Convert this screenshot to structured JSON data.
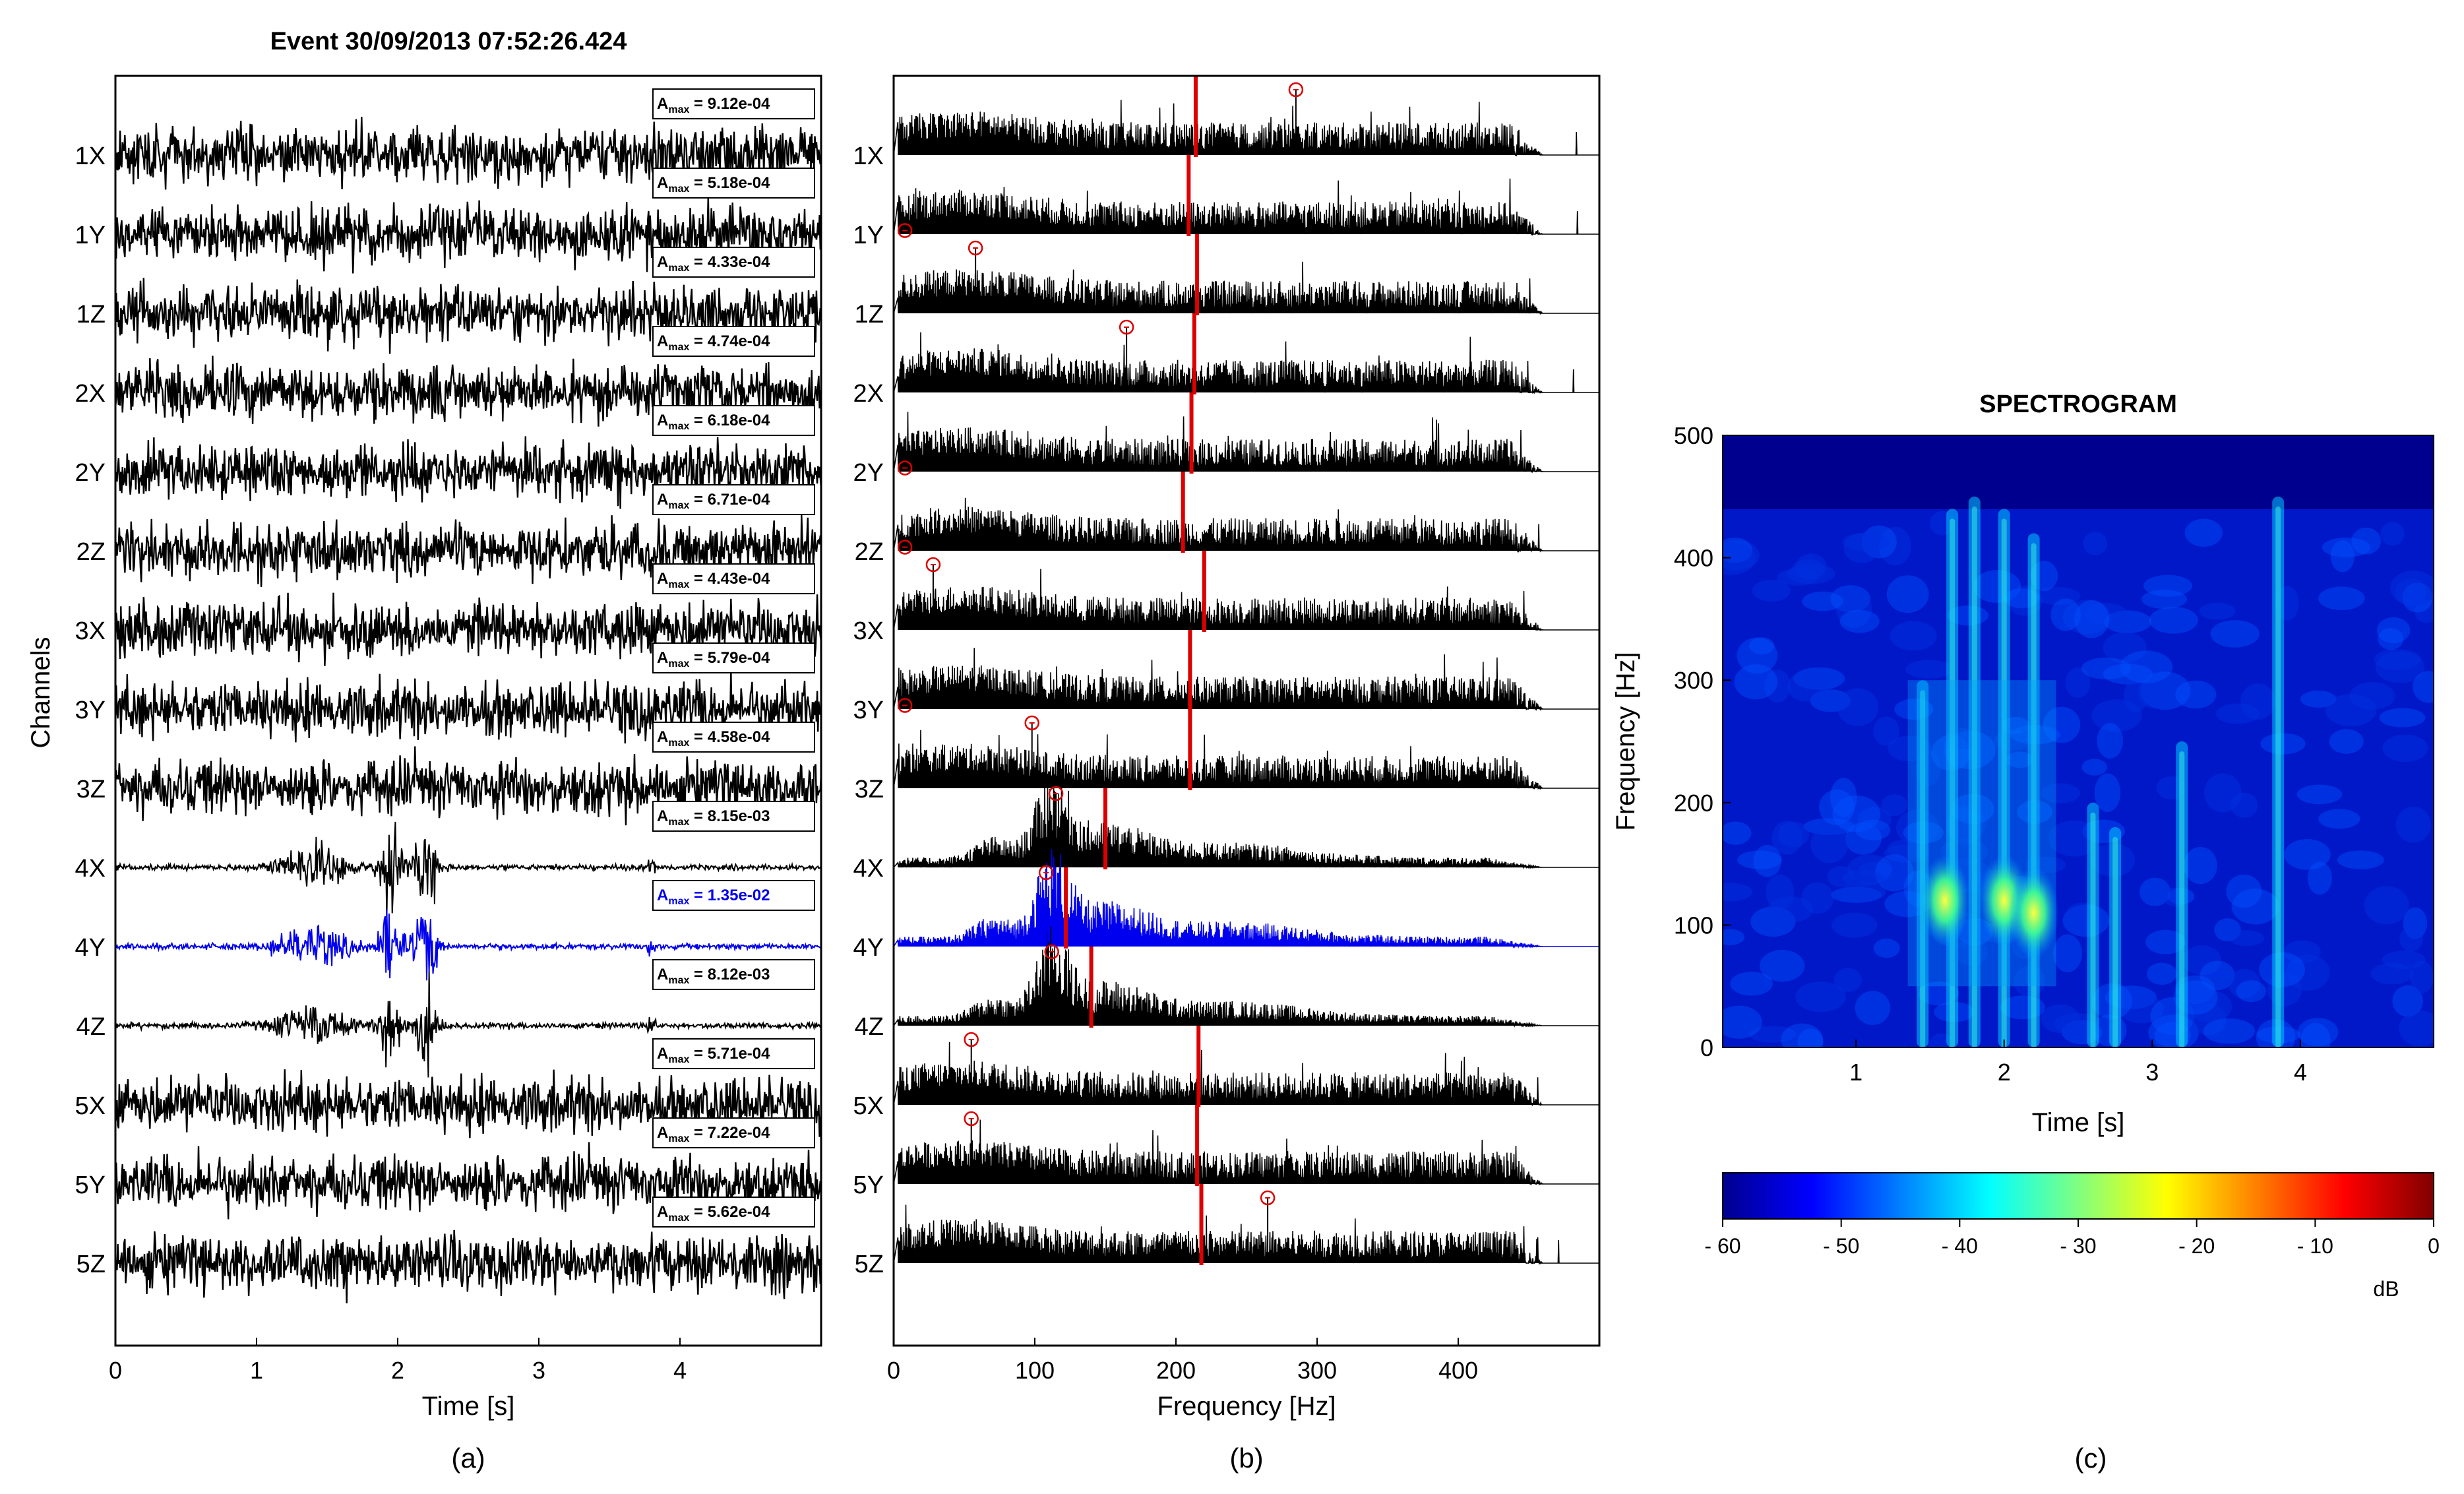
{
  "chart_data": [
    {
      "type": "line",
      "panel_label": "(a)",
      "title": "Event 30/09/2013  07:52:26.424",
      "xlabel": "Time [s]",
      "ylabel": "Channels",
      "xlim": [
        0,
        5
      ],
      "xticks": [
        "0",
        "1",
        "2",
        "3",
        "4"
      ],
      "channels": [
        "1X",
        "1Y",
        "1Z",
        "2X",
        "2Y",
        "2Z",
        "3X",
        "3Y",
        "3Z",
        "4X",
        "4Y",
        "4Z",
        "5X",
        "5Y",
        "5Z"
      ],
      "amax_label": "Amax",
      "amax_values": [
        "9.12e-04",
        "5.18e-04",
        "4.33e-04",
        "4.74e-04",
        "6.18e-04",
        "6.71e-04",
        "4.43e-04",
        "5.79e-04",
        "4.58e-04",
        "8.15e-03",
        "1.35e-02",
        "8.12e-03",
        "5.71e-04",
        "7.22e-04",
        "5.62e-04"
      ],
      "highlight_channel": "4Y",
      "highlight_color": "#0000ee",
      "trace_color": "#000000",
      "event_bursts_s": [
        1.4,
        1.95,
        2.2
      ]
    },
    {
      "type": "line",
      "panel_label": "(b)",
      "xlabel": "Frequency [Hz]",
      "xlim": [
        0,
        500
      ],
      "xticks": [
        "0",
        "100",
        "200",
        "300",
        "400"
      ],
      "channels": [
        "1X",
        "1Y",
        "1Z",
        "2X",
        "2Y",
        "2Z",
        "3X",
        "3Y",
        "3Z",
        "4X",
        "4Y",
        "4Z",
        "5X",
        "5Y",
        "5Z"
      ],
      "peak_frequency_hz": [
        285,
        8,
        58,
        165,
        8,
        8,
        28,
        8,
        98,
        115,
        108,
        112,
        55,
        55,
        265
      ],
      "mean_frequency_hz": [
        214,
        209,
        215,
        213,
        211,
        205,
        220,
        210,
        210,
        150,
        122,
        140,
        216,
        215,
        218
      ],
      "marker_color": "#dd0000",
      "highlight_channel": "4Y",
      "highlight_color": "#0000ee"
    },
    {
      "type": "heatmap",
      "panel_label": "(c)",
      "title": "SPECTROGRAM",
      "xlabel": "Time [s]",
      "ylabel": "Frequency [Hz]",
      "xlim": [
        0.1,
        4.9
      ],
      "ylim": [
        0,
        500
      ],
      "xticks": [
        "1",
        "2",
        "3",
        "4"
      ],
      "yticks": [
        "0",
        "100",
        "200",
        "300",
        "400",
        "500"
      ],
      "colorbar": {
        "range_db": [
          -60,
          0
        ],
        "ticks": [
          "- 60",
          "- 50",
          "- 40",
          "- 30",
          "- 20",
          "- 10",
          "0"
        ],
        "unit": "dB"
      },
      "energy_bands": [
        {
          "t": 1.45,
          "f_max": 300
        },
        {
          "t": 1.65,
          "f_max": 440
        },
        {
          "t": 1.8,
          "f_max": 450
        },
        {
          "t": 2.0,
          "f_max": 440
        },
        {
          "t": 2.2,
          "f_max": 420
        },
        {
          "t": 2.6,
          "f_max": 200
        },
        {
          "t": 2.75,
          "f_max": 180
        },
        {
          "t": 3.2,
          "f_max": 250
        },
        {
          "t": 3.85,
          "f_max": 450
        }
      ],
      "hot_spots": [
        {
          "t": 2.0,
          "f": 120,
          "db": -25
        },
        {
          "t": 2.2,
          "f": 110,
          "db": -28
        },
        {
          "t": 1.6,
          "f": 120,
          "db": -32
        }
      ]
    }
  ]
}
